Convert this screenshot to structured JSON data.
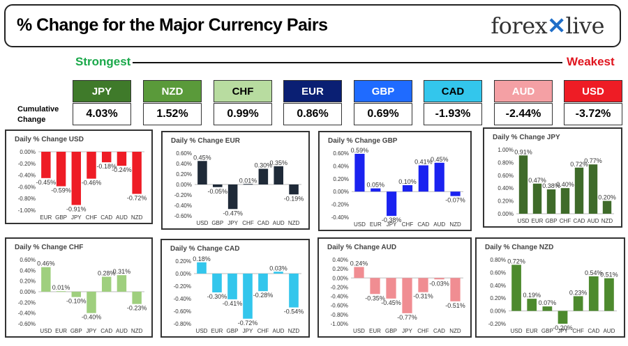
{
  "header": {
    "title": "% Change for the Major Currency Pairs",
    "logo_left": "forex",
    "logo_right": "live"
  },
  "ranking": {
    "strongest_label": "Strongest",
    "weakest_label": "Weakest",
    "cumulative_label": "Cumulative Change",
    "currencies": [
      {
        "code": "JPY",
        "value": "4.03%",
        "bg": "#3f7a2a",
        "fg": "#ffffff"
      },
      {
        "code": "NZD",
        "value": "1.52%",
        "bg": "#5a9a3a",
        "fg": "#ffffff"
      },
      {
        "code": "CHF",
        "value": "0.99%",
        "bg": "#b8dca0",
        "fg": "#000000"
      },
      {
        "code": "EUR",
        "value": "0.86%",
        "bg": "#0a1f73",
        "fg": "#ffffff"
      },
      {
        "code": "GBP",
        "value": "0.69%",
        "bg": "#1f6bff",
        "fg": "#ffffff"
      },
      {
        "code": "CAD",
        "value": "-1.93%",
        "bg": "#33c6ec",
        "fg": "#000000"
      },
      {
        "code": "AUD",
        "value": "-2.44%",
        "bg": "#f4a0a4",
        "fg": "#ffffff"
      },
      {
        "code": "USD",
        "value": "-3.72%",
        "bg": "#ee1c25",
        "fg": "#ffffff"
      }
    ]
  },
  "chart_data": [
    {
      "type": "bar",
      "title": "Daily % Change USD",
      "categories": [
        "EUR",
        "GBP",
        "JPY",
        "CHF",
        "CAD",
        "AUD",
        "NZD"
      ],
      "values": [
        -0.45,
        -0.59,
        -0.91,
        -0.46,
        -0.18,
        -0.24,
        -0.72
      ],
      "labels": [
        "-0.45%",
        "-0.59%",
        "-0.91%",
        "-0.46%",
        "-0.18%",
        "-0.24%",
        "-0.72%"
      ],
      "ylim": [
        -1.0,
        0.0
      ],
      "yticks": [
        "0.00%",
        "-0.20%",
        "-0.40%",
        "-0.60%",
        "-0.80%",
        "-1.00%"
      ],
      "ytick_values": [
        0,
        -0.2,
        -0.4,
        -0.6,
        -0.8,
        -1.0
      ],
      "color": "#ee1c25",
      "grid": false
    },
    {
      "type": "bar",
      "title": "Daily % Change EUR",
      "categories": [
        "USD",
        "GBP",
        "JPY",
        "CHF",
        "CAD",
        "AUD",
        "NZD"
      ],
      "values": [
        0.45,
        -0.05,
        -0.47,
        0.01,
        0.3,
        0.35,
        -0.19
      ],
      "labels": [
        "0.45%",
        "-0.05%",
        "-0.47%",
        "0.01%",
        "0.30%",
        "0.35%",
        "-0.19%"
      ],
      "ylim": [
        -0.6,
        0.6
      ],
      "yticks": [
        "0.60%",
        "0.40%",
        "0.20%",
        "0.00%",
        "-0.20%",
        "-0.40%",
        "-0.60%"
      ],
      "ytick_values": [
        0.6,
        0.4,
        0.2,
        0,
        -0.2,
        -0.4,
        -0.6
      ],
      "color": "#1f2a38",
      "grid": false
    },
    {
      "type": "bar",
      "title": "Daily % Change GBP",
      "categories": [
        "USD",
        "EUR",
        "JPY",
        "CHF",
        "CAD",
        "AUD",
        "NZD"
      ],
      "values": [
        0.59,
        0.05,
        -0.38,
        0.1,
        0.41,
        0.45,
        -0.07
      ],
      "labels": [
        "0.59%",
        "0.05%",
        "-0.38%",
        "0.10%",
        "0.41%",
        "0.45%",
        "-0.07%"
      ],
      "ylim": [
        -0.4,
        0.6
      ],
      "yticks": [
        "0.60%",
        "0.40%",
        "0.20%",
        "0.00%",
        "-0.20%",
        "-0.40%"
      ],
      "ytick_values": [
        0.6,
        0.4,
        0.2,
        0,
        -0.2,
        -0.4
      ],
      "color": "#1a22f0",
      "grid": false
    },
    {
      "type": "bar",
      "title": "Daily % Change JPY",
      "categories": [
        "USD",
        "EUR",
        "GBP",
        "CHF",
        "CAD",
        "AUD",
        "NZD"
      ],
      "values": [
        0.91,
        0.47,
        0.38,
        0.4,
        0.72,
        0.77,
        0.2
      ],
      "labels": [
        "0.91%",
        "0.47%",
        "0.38%",
        "0.40%",
        "0.72%",
        "0.77%",
        "0.20%"
      ],
      "ylim": [
        0.0,
        1.0
      ],
      "yticks": [
        "1.00%",
        "0.80%",
        "0.60%",
        "0.40%",
        "0.20%",
        "0.00%"
      ],
      "ytick_values": [
        1.0,
        0.8,
        0.6,
        0.4,
        0.2,
        0
      ],
      "color": "#3f6b2a",
      "grid": false
    },
    {
      "type": "bar",
      "title": "Daily % Change CHF",
      "categories": [
        "USD",
        "EUR",
        "GBP",
        "JPY",
        "CAD",
        "AUD",
        "NZD"
      ],
      "values": [
        0.46,
        0.01,
        -0.1,
        -0.4,
        0.28,
        0.31,
        -0.23
      ],
      "labels": [
        "0.46%",
        "0.01%",
        "-0.10%",
        "-0.40%",
        "0.28%",
        "0.31%",
        "-0.23%"
      ],
      "ylim": [
        -0.6,
        0.6
      ],
      "yticks": [
        "0.60%",
        "0.40%",
        "0.20%",
        "0.00%",
        "-0.20%",
        "-0.40%",
        "-0.60%"
      ],
      "ytick_values": [
        0.6,
        0.4,
        0.2,
        0,
        -0.2,
        -0.4,
        -0.6
      ],
      "color": "#9fcf7e",
      "grid": false
    },
    {
      "type": "bar",
      "title": "Daily % Change CAD",
      "categories": [
        "USD",
        "EUR",
        "GBP",
        "JPY",
        "CHF",
        "AUD",
        "NZD"
      ],
      "values": [
        0.18,
        -0.3,
        -0.41,
        -0.72,
        -0.28,
        0.03,
        -0.54
      ],
      "labels": [
        "0.18%",
        "-0.30%",
        "-0.41%",
        "-0.72%",
        "-0.28%",
        "0.03%",
        "-0.54%"
      ],
      "ylim": [
        -0.8,
        0.2
      ],
      "yticks": [
        "0.20%",
        "0.00%",
        "-0.20%",
        "-0.40%",
        "-0.60%",
        "-0.80%"
      ],
      "ytick_values": [
        0.2,
        0,
        -0.2,
        -0.4,
        -0.6,
        -0.8
      ],
      "color": "#33c6ec",
      "grid": false
    },
    {
      "type": "bar",
      "title": "Daily % Change AUD",
      "categories": [
        "USD",
        "EUR",
        "GBP",
        "JPY",
        "CHF",
        "CAD",
        "NZD"
      ],
      "values": [
        0.24,
        -0.35,
        -0.45,
        -0.77,
        -0.31,
        -0.03,
        -0.51
      ],
      "labels": [
        "0.24%",
        "-0.35%",
        "-0.45%",
        "-0.77%",
        "-0.31%",
        "-0.03%",
        "-0.51%"
      ],
      "ylim": [
        -1.0,
        0.4
      ],
      "yticks": [
        "0.40%",
        "0.20%",
        "0.00%",
        "-0.20%",
        "-0.40%",
        "-0.60%",
        "-0.80%",
        "-1.00%"
      ],
      "ytick_values": [
        0.4,
        0.2,
        0,
        -0.2,
        -0.4,
        -0.6,
        -0.8,
        -1.0
      ],
      "color": "#f08d92",
      "grid": false
    },
    {
      "type": "bar",
      "title": "Daily % Change NZD",
      "categories": [
        "USD",
        "EUR",
        "GBP",
        "JPY",
        "CHF",
        "CAD",
        "AUD"
      ],
      "values": [
        0.72,
        0.19,
        0.07,
        -0.2,
        0.23,
        0.54,
        0.51
      ],
      "labels": [
        "0.72%",
        "0.19%",
        "0.07%",
        "-0.20%",
        "0.23%",
        "0.54%",
        "0.51%"
      ],
      "ylim": [
        -0.2,
        0.8
      ],
      "yticks": [
        "0.80%",
        "0.60%",
        "0.40%",
        "0.20%",
        "0.00%",
        "-0.20%"
      ],
      "ytick_values": [
        0.8,
        0.6,
        0.4,
        0.2,
        0,
        -0.2
      ],
      "color": "#4d8a2e",
      "grid": false
    }
  ]
}
